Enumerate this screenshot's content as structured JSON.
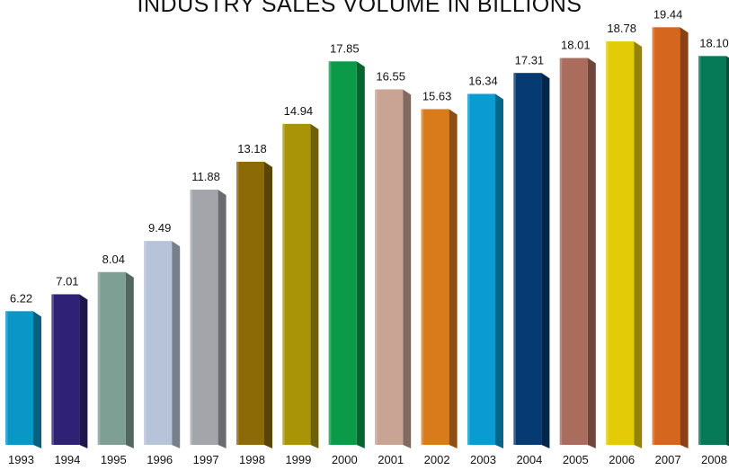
{
  "chart_data": {
    "type": "bar",
    "title": "INDUSTRY SALES VOLUME IN BILLIONS",
    "xlabel": "",
    "ylabel": "",
    "ylim": [
      0,
      20
    ],
    "grid": false,
    "legend": "none",
    "categories": [
      "1993",
      "1994",
      "1995",
      "1996",
      "1997",
      "1998",
      "1999",
      "2000",
      "2001",
      "2002",
      "2003",
      "2004",
      "2005",
      "2006",
      "2007",
      "2008"
    ],
    "values": [
      6.22,
      7.01,
      8.04,
      9.49,
      11.88,
      13.18,
      14.94,
      17.85,
      16.55,
      15.63,
      16.34,
      17.31,
      18.01,
      18.78,
      19.44,
      18.1
    ],
    "value_labels": [
      "6.22",
      "7.01",
      "8.04",
      "9.49",
      "11.88",
      "13.18",
      "14.94",
      "17.85",
      "16.55",
      "15.63",
      "16.34",
      "17.31",
      "18.01",
      "18.78",
      "19.44",
      "18.10"
    ],
    "colors": [
      "#0b96c8",
      "#2f2176",
      "#7e9f93",
      "#b6c3d8",
      "#a3a5ab",
      "#8c6a06",
      "#a99306",
      "#0c9a49",
      "#c9a394",
      "#d97b1a",
      "#0a9bd2",
      "#063a73",
      "#a96c5d",
      "#e4cb08",
      "#d5661e",
      "#067957"
    ]
  }
}
